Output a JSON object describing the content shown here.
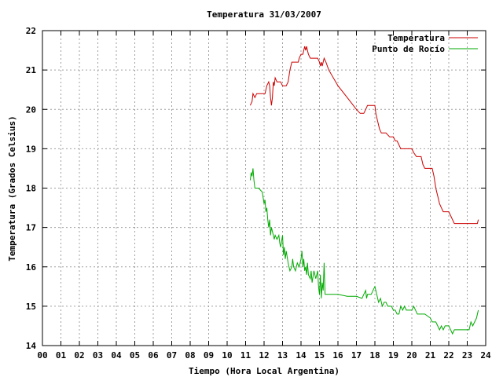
{
  "chart_data": {
    "type": "line",
    "title": "Temperatura 31/03/2007",
    "xlabel": "Tiempo (Hora Local Argentina)",
    "ylabel": "Temperatura (Grados Celsius)",
    "xlim": [
      0,
      24
    ],
    "ylim": [
      14,
      22
    ],
    "x_ticks": [
      "00",
      "01",
      "02",
      "03",
      "04",
      "05",
      "06",
      "07",
      "08",
      "09",
      "10",
      "11",
      "12",
      "13",
      "14",
      "15",
      "16",
      "17",
      "18",
      "19",
      "20",
      "21",
      "22",
      "23",
      "24"
    ],
    "y_ticks": [
      "14",
      "15",
      "16",
      "17",
      "18",
      "19",
      "20",
      "21",
      "22"
    ],
    "grid": true,
    "legend_position": "top-right",
    "series": [
      {
        "name": "Temperatura",
        "color": "#cc0000",
        "points": [
          [
            11.25,
            20.1
          ],
          [
            11.35,
            20.2
          ],
          [
            11.4,
            20.4
          ],
          [
            11.5,
            20.3
          ],
          [
            11.6,
            20.4
          ],
          [
            11.8,
            20.4
          ],
          [
            11.95,
            20.4
          ],
          [
            12.05,
            20.4
          ],
          [
            12.15,
            20.6
          ],
          [
            12.25,
            20.7
          ],
          [
            12.3,
            20.6
          ],
          [
            12.35,
            20.3
          ],
          [
            12.4,
            20.1
          ],
          [
            12.45,
            20.3
          ],
          [
            12.5,
            20.7
          ],
          [
            12.55,
            20.6
          ],
          [
            12.6,
            20.8
          ],
          [
            12.7,
            20.7
          ],
          [
            12.9,
            20.7
          ],
          [
            13.0,
            20.6
          ],
          [
            13.1,
            20.6
          ],
          [
            13.2,
            20.6
          ],
          [
            13.3,
            20.7
          ],
          [
            13.4,
            21.0
          ],
          [
            13.5,
            21.2
          ],
          [
            13.7,
            21.2
          ],
          [
            13.85,
            21.2
          ],
          [
            13.9,
            21.3
          ],
          [
            14.0,
            21.4
          ],
          [
            14.1,
            21.4
          ],
          [
            14.15,
            21.5
          ],
          [
            14.2,
            21.6
          ],
          [
            14.25,
            21.5
          ],
          [
            14.3,
            21.6
          ],
          [
            14.35,
            21.5
          ],
          [
            14.4,
            21.4
          ],
          [
            14.5,
            21.3
          ],
          [
            14.7,
            21.3
          ],
          [
            14.9,
            21.3
          ],
          [
            15.0,
            21.2
          ],
          [
            15.05,
            21.1
          ],
          [
            15.1,
            21.2
          ],
          [
            15.15,
            21.1
          ],
          [
            15.2,
            21.2
          ],
          [
            15.25,
            21.3
          ],
          [
            15.35,
            21.2
          ],
          [
            15.5,
            21.0
          ],
          [
            16.0,
            20.6
          ],
          [
            16.5,
            20.3
          ],
          [
            17.0,
            20.0
          ],
          [
            17.2,
            19.9
          ],
          [
            17.4,
            19.9
          ],
          [
            17.5,
            20.0
          ],
          [
            17.6,
            20.1
          ],
          [
            17.8,
            20.1
          ],
          [
            18.0,
            20.1
          ],
          [
            18.05,
            19.9
          ],
          [
            18.15,
            19.7
          ],
          [
            18.25,
            19.5
          ],
          [
            18.35,
            19.4
          ],
          [
            18.6,
            19.4
          ],
          [
            18.8,
            19.3
          ],
          [
            19.0,
            19.3
          ],
          [
            19.1,
            19.2
          ],
          [
            19.2,
            19.2
          ],
          [
            19.3,
            19.1
          ],
          [
            19.4,
            19.0
          ],
          [
            19.6,
            19.0
          ],
          [
            20.0,
            19.0
          ],
          [
            20.1,
            18.9
          ],
          [
            20.25,
            18.8
          ],
          [
            20.5,
            18.8
          ],
          [
            20.6,
            18.6
          ],
          [
            20.7,
            18.5
          ],
          [
            20.9,
            18.5
          ],
          [
            21.1,
            18.5
          ],
          [
            21.2,
            18.3
          ],
          [
            21.3,
            18.0
          ],
          [
            21.4,
            17.8
          ],
          [
            21.5,
            17.6
          ],
          [
            21.6,
            17.5
          ],
          [
            21.7,
            17.4
          ],
          [
            22.0,
            17.4
          ],
          [
            22.1,
            17.3
          ],
          [
            22.2,
            17.2
          ],
          [
            22.3,
            17.1
          ],
          [
            22.5,
            17.1
          ],
          [
            23.0,
            17.1
          ],
          [
            23.4,
            17.1
          ],
          [
            23.55,
            17.1
          ],
          [
            23.6,
            17.2
          ]
        ]
      },
      {
        "name": "Punto de Rocío",
        "color": "#00aa00",
        "points": [
          [
            11.25,
            18.2
          ],
          [
            11.3,
            18.4
          ],
          [
            11.35,
            18.3
          ],
          [
            11.4,
            18.5
          ],
          [
            11.45,
            18.2
          ],
          [
            11.5,
            18.0
          ],
          [
            11.7,
            18.0
          ],
          [
            11.9,
            17.9
          ],
          [
            12.0,
            17.6
          ],
          [
            12.05,
            17.7
          ],
          [
            12.1,
            17.4
          ],
          [
            12.15,
            17.5
          ],
          [
            12.2,
            17.2
          ],
          [
            12.25,
            17.0
          ],
          [
            12.3,
            17.2
          ],
          [
            12.35,
            16.8
          ],
          [
            12.4,
            17.0
          ],
          [
            12.45,
            16.9
          ],
          [
            12.5,
            16.8
          ],
          [
            12.55,
            16.7
          ],
          [
            12.6,
            16.8
          ],
          [
            12.7,
            16.7
          ],
          [
            12.8,
            16.8
          ],
          [
            12.85,
            16.6
          ],
          [
            12.9,
            16.5
          ],
          [
            13.0,
            16.8
          ],
          [
            13.05,
            16.3
          ],
          [
            13.1,
            16.5
          ],
          [
            13.15,
            16.2
          ],
          [
            13.2,
            16.4
          ],
          [
            13.3,
            16.1
          ],
          [
            13.35,
            16.0
          ],
          [
            13.4,
            15.9
          ],
          [
            13.5,
            16.0
          ],
          [
            13.55,
            16.2
          ],
          [
            13.6,
            16.0
          ],
          [
            13.7,
            15.9
          ],
          [
            13.8,
            16.1
          ],
          [
            13.9,
            16.0
          ],
          [
            14.0,
            16.2
          ],
          [
            14.05,
            16.4
          ],
          [
            14.1,
            16.0
          ],
          [
            14.15,
            16.2
          ],
          [
            14.2,
            15.9
          ],
          [
            14.25,
            16.0
          ],
          [
            14.3,
            15.8
          ],
          [
            14.35,
            16.1
          ],
          [
            14.4,
            15.8
          ],
          [
            14.5,
            15.7
          ],
          [
            14.55,
            15.9
          ],
          [
            14.6,
            15.6
          ],
          [
            14.7,
            15.9
          ],
          [
            14.8,
            15.7
          ],
          [
            14.9,
            15.9
          ],
          [
            14.95,
            15.5
          ],
          [
            15.0,
            15.3
          ],
          [
            15.05,
            15.8
          ],
          [
            15.1,
            15.2
          ],
          [
            15.15,
            15.6
          ],
          [
            15.2,
            15.4
          ],
          [
            15.25,
            16.1
          ],
          [
            15.3,
            15.3
          ],
          [
            15.5,
            15.3
          ],
          [
            16.0,
            15.3
          ],
          [
            16.5,
            15.25
          ],
          [
            17.0,
            15.25
          ],
          [
            17.3,
            15.2
          ],
          [
            17.4,
            15.3
          ],
          [
            17.5,
            15.4
          ],
          [
            17.55,
            15.2
          ],
          [
            17.6,
            15.3
          ],
          [
            17.8,
            15.3
          ],
          [
            17.9,
            15.4
          ],
          [
            18.0,
            15.5
          ],
          [
            18.1,
            15.3
          ],
          [
            18.15,
            15.2
          ],
          [
            18.2,
            15.1
          ],
          [
            18.3,
            15.2
          ],
          [
            18.4,
            15.0
          ],
          [
            18.5,
            15.1
          ],
          [
            18.6,
            15.1
          ],
          [
            18.7,
            15.0
          ],
          [
            18.8,
            15.0
          ],
          [
            18.9,
            15.0
          ],
          [
            19.0,
            14.9
          ],
          [
            19.1,
            14.9
          ],
          [
            19.2,
            14.8
          ],
          [
            19.3,
            14.8
          ],
          [
            19.4,
            15.0
          ],
          [
            19.5,
            14.9
          ],
          [
            19.6,
            15.0
          ],
          [
            19.7,
            14.9
          ],
          [
            19.8,
            14.9
          ],
          [
            19.9,
            14.9
          ],
          [
            20.0,
            14.9
          ],
          [
            20.1,
            15.0
          ],
          [
            20.2,
            14.9
          ],
          [
            20.3,
            14.8
          ],
          [
            20.5,
            14.8
          ],
          [
            20.7,
            14.8
          ],
          [
            21.0,
            14.7
          ],
          [
            21.1,
            14.6
          ],
          [
            21.3,
            14.6
          ],
          [
            21.4,
            14.5
          ],
          [
            21.5,
            14.4
          ],
          [
            21.6,
            14.5
          ],
          [
            21.7,
            14.4
          ],
          [
            21.8,
            14.5
          ],
          [
            22.0,
            14.5
          ],
          [
            22.1,
            14.4
          ],
          [
            22.2,
            14.3
          ],
          [
            22.3,
            14.4
          ],
          [
            22.5,
            14.4
          ],
          [
            23.0,
            14.4
          ],
          [
            23.1,
            14.4
          ],
          [
            23.2,
            14.6
          ],
          [
            23.3,
            14.5
          ],
          [
            23.4,
            14.6
          ],
          [
            23.5,
            14.7
          ],
          [
            23.6,
            14.9
          ]
        ]
      }
    ]
  }
}
